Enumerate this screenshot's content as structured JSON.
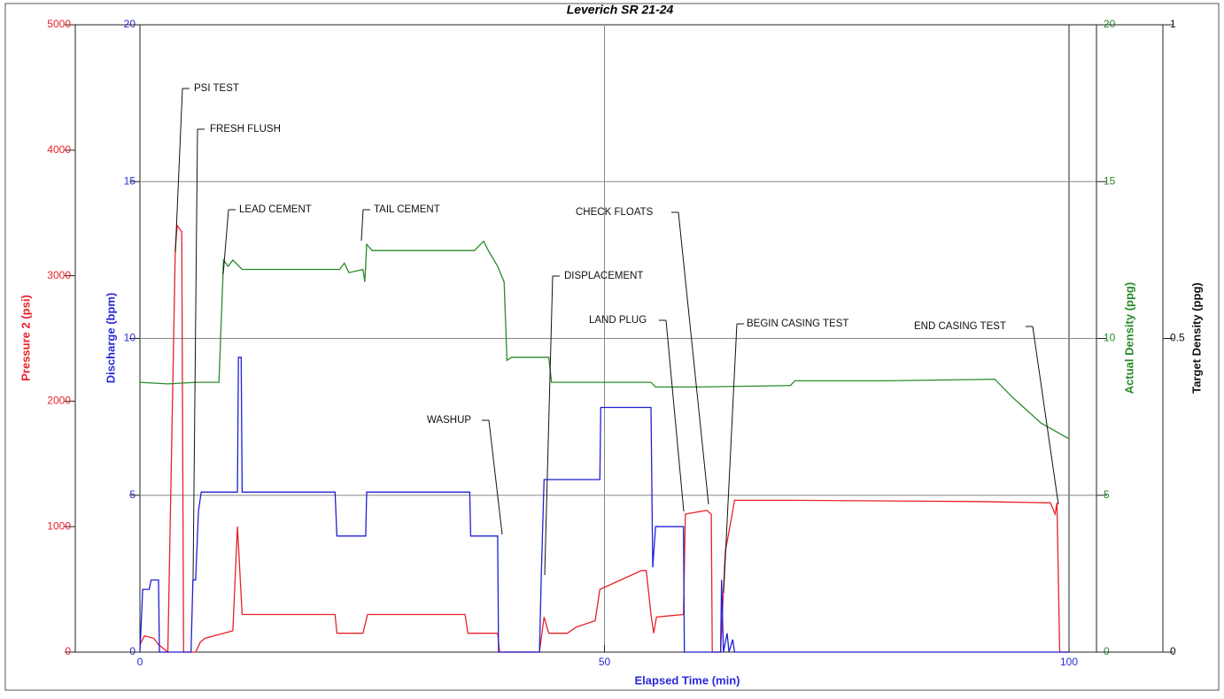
{
  "chart_data": {
    "type": "line",
    "title": "Leverich SR 21-24",
    "xlabel": "Elapsed Time (min)",
    "ylabel": "Pressure 2 (psi)",
    "y2label": "Discharge (bpm)",
    "y3label": "Actual Density (ppg)",
    "y4label": "Target Density (ppg)",
    "xlim": [
      0,
      100
    ],
    "xticks": [
      0,
      50,
      100
    ],
    "ylim": [
      0,
      5000
    ],
    "yticks": [
      0,
      1000,
      2000,
      3000,
      4000,
      5000
    ],
    "y2lim": [
      0,
      20
    ],
    "y2ticks": [
      0,
      5,
      10,
      15,
      20
    ],
    "y3lim": [
      0,
      20
    ],
    "y3ticks": [
      0,
      5,
      10,
      15,
      20
    ],
    "y4lim": [
      0,
      1
    ],
    "y4ticks": [
      0,
      0.5,
      1
    ],
    "grid": true,
    "series": [
      {
        "name": "Pressure 2",
        "axis": "y",
        "color": "#e8212a",
        "x": [
          0,
          0.5,
          1.5,
          2,
          3,
          3.8,
          4,
          4.5,
          4.7,
          6,
          6.5,
          7,
          9,
          10,
          10.5,
          11,
          20,
          21,
          21.2,
          24,
          24.5,
          35,
          35.3,
          38.5,
          38.7,
          43,
          43.5,
          44,
          46,
          47,
          49,
          49.5,
          54,
          54.5,
          55,
          55.3,
          55.6,
          58.5,
          58.7,
          61,
          61.5,
          61.6,
          62.5,
          63,
          63.5,
          64,
          70,
          90,
          98,
          98.5,
          98.7,
          99,
          100
        ],
        "values": [
          60,
          130,
          110,
          60,
          0,
          3200,
          3400,
          3350,
          0,
          0,
          80,
          110,
          150,
          170,
          1000,
          300,
          300,
          300,
          150,
          150,
          300,
          300,
          150,
          150,
          0,
          0,
          280,
          150,
          150,
          200,
          250,
          500,
          650,
          650,
          300,
          150,
          280,
          300,
          1100,
          1130,
          1100,
          0,
          0,
          800,
          1000,
          1210,
          1210,
          1200,
          1190,
          1100,
          1190,
          0,
          0
        ]
      },
      {
        "name": "Discharge",
        "axis": "y2",
        "color": "#1f1fd6",
        "x": [
          0,
          0.3,
          1,
          1.2,
          2,
          2.1,
          5.5,
          5.7,
          6,
          6.3,
          6.6,
          10.5,
          10.6,
          10.9,
          11,
          21,
          21.2,
          24.3,
          24.4,
          35.5,
          35.6,
          38.5,
          38.6,
          43,
          43.2,
          43.5,
          49.5,
          49.6,
          55,
          55.2,
          55.5,
          58.5,
          58.6,
          62.5,
          62.6,
          62.8,
          63.2,
          63.4,
          63.8,
          64,
          100
        ],
        "values": [
          0,
          2.0,
          2.0,
          2.3,
          2.3,
          0,
          0,
          2.3,
          2.3,
          4.5,
          5.1,
          5.1,
          9.4,
          9.4,
          5.1,
          5.1,
          3.7,
          3.7,
          5.1,
          5.1,
          3.7,
          3.7,
          0,
          0,
          2.5,
          5.5,
          5.5,
          7.8,
          7.8,
          2.7,
          4.0,
          4.0,
          0,
          0,
          2.3,
          0,
          0.6,
          0,
          0.4,
          0,
          0
        ]
      },
      {
        "name": "Actual Density",
        "axis": "y3",
        "color": "#2a8a2a",
        "x": [
          0,
          3,
          6,
          8.5,
          9,
          9.5,
          10,
          11,
          20,
          21.5,
          22,
          22.5,
          24,
          24.2,
          24.4,
          25,
          30,
          36,
          37,
          37.5,
          38.5,
          39.2,
          39.5,
          40,
          44,
          44.3,
          55,
          55.5,
          60,
          70,
          70.5,
          80,
          92,
          94,
          97,
          100
        ],
        "values": [
          8.6,
          8.55,
          8.6,
          8.6,
          12.5,
          12.3,
          12.5,
          12.2,
          12.2,
          12.2,
          12.4,
          12.1,
          12.2,
          11.8,
          13.0,
          12.8,
          12.8,
          12.8,
          13.1,
          12.8,
          12.3,
          11.8,
          9.3,
          9.4,
          9.4,
          8.6,
          8.6,
          8.45,
          8.45,
          8.5,
          8.65,
          8.65,
          8.7,
          8.1,
          7.3,
          6.8
        ]
      }
    ],
    "annotations": [
      "PSI TEST",
      "FRESH FLUSH",
      "LEAD CEMENT",
      "TAIL CEMENT",
      "CHECK FLOATS",
      "DISPLACEMENT",
      "LAND PLUG",
      "BEGIN CASING TEST",
      "END CASING TEST",
      "WASHUP"
    ]
  }
}
